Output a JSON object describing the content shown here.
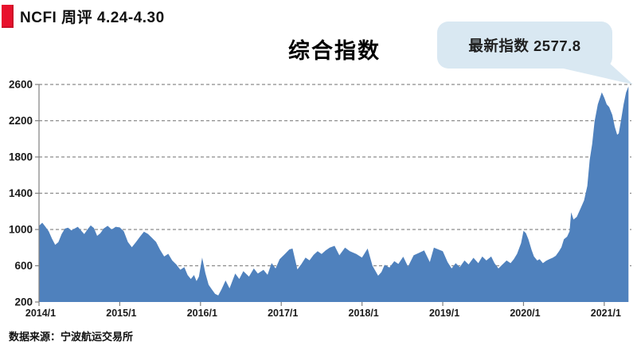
{
  "header": {
    "title": "NCFI 周评 4.24-4.30",
    "badge_color": "#e8112d"
  },
  "chart": {
    "title": "综合指数",
    "callout": {
      "label": "最新指数",
      "value": "2577.8",
      "text": "最新指数 2577.8",
      "bg": "#d9e8f2"
    },
    "source": "数据来源：宁波航运交易所"
  },
  "chart_data": {
    "type": "area",
    "title": "综合指数",
    "series_name": "NCFI 综合指数 (周)",
    "latest_value": 2577.8,
    "xlim": [
      2014.0,
      2021.3
    ],
    "ylim": [
      200,
      2600
    ],
    "grid": "horizontal-dashed",
    "legend": "none",
    "colors": {
      "area": "#4f81bd",
      "grid": "#8c8c8c",
      "axis": "#808080",
      "label": "#1a1a1a"
    },
    "y_ticks": [
      200,
      600,
      1000,
      1400,
      1800,
      2200,
      2600
    ],
    "x_ticks": {
      "positions": [
        2014,
        2015,
        2016,
        2017,
        2018,
        2019,
        2020,
        2021
      ],
      "labels": [
        "2014/1",
        "2015/1",
        "2016/1",
        "2017/1",
        "2018/1",
        "2019/1",
        "2020/1",
        "2021/1"
      ]
    },
    "x": [
      2014.0,
      2014.04,
      2014.08,
      2014.12,
      2014.16,
      2014.2,
      2014.24,
      2014.28,
      2014.32,
      2014.36,
      2014.4,
      2014.44,
      2014.48,
      2014.52,
      2014.56,
      2014.6,
      2014.64,
      2014.68,
      2014.72,
      2014.76,
      2014.8,
      2014.85,
      2014.9,
      2014.95,
      2015.0,
      2015.05,
      2015.1,
      2015.15,
      2015.2,
      2015.25,
      2015.3,
      2015.35,
      2015.4,
      2015.45,
      2015.5,
      2015.55,
      2015.6,
      2015.65,
      2015.7,
      2015.75,
      2015.8,
      2015.84,
      2015.88,
      2015.92,
      2015.95,
      2015.98,
      2016.02,
      2016.06,
      2016.1,
      2016.14,
      2016.18,
      2016.22,
      2016.26,
      2016.31,
      2016.36,
      2016.43,
      2016.48,
      2016.53,
      2016.6,
      2016.66,
      2016.71,
      2016.78,
      2016.83,
      2016.88,
      2016.93,
      2016.98,
      2017.05,
      2017.1,
      2017.14,
      2017.2,
      2017.25,
      2017.3,
      2017.35,
      2017.4,
      2017.45,
      2017.5,
      2017.55,
      2017.6,
      2017.66,
      2017.72,
      2017.79,
      2017.85,
      2017.93,
      2018.0,
      2018.07,
      2018.13,
      2018.2,
      2018.24,
      2018.28,
      2018.34,
      2018.4,
      2018.45,
      2018.51,
      2018.57,
      2018.64,
      2018.7,
      2018.77,
      2018.84,
      2018.89,
      2018.96,
      2019.0,
      2019.06,
      2019.11,
      2019.16,
      2019.21,
      2019.27,
      2019.32,
      2019.38,
      2019.44,
      2019.49,
      2019.54,
      2019.6,
      2019.64,
      2019.69,
      2019.74,
      2019.79,
      2019.84,
      2019.88,
      2019.92,
      2019.97,
      2020.0,
      2020.03,
      2020.06,
      2020.1,
      2020.13,
      2020.17,
      2020.2,
      2020.24,
      2020.28,
      2020.32,
      2020.36,
      2020.4,
      2020.44,
      2020.47,
      2020.5,
      2020.54,
      2020.57,
      2020.59,
      2020.62,
      2020.66,
      2020.71,
      2020.75,
      2020.79,
      2020.82,
      2020.85,
      2020.88,
      2020.92,
      2020.97,
      2021.0,
      2021.03,
      2021.06,
      2021.1,
      2021.13,
      2021.16,
      2021.18,
      2021.21,
      2021.24,
      2021.27,
      2021.3
    ],
    "values": [
      1040,
      1075,
      1030,
      980,
      900,
      830,
      860,
      950,
      1010,
      1020,
      990,
      1010,
      1030,
      990,
      950,
      1000,
      1045,
      1015,
      930,
      960,
      1010,
      1040,
      1000,
      1030,
      1023,
      980,
      863,
      805,
      860,
      921,
      975,
      951,
      907,
      863,
      775,
      702,
      732,
      658,
      614,
      556,
      585,
      498,
      454,
      498,
      430,
      480,
      690,
      520,
      390,
      340,
      290,
      273,
      340,
      437,
      350,
      515,
      454,
      540,
      480,
      570,
      515,
      555,
      500,
      630,
      570,
      673,
      734,
      780,
      790,
      560,
      620,
      690,
      660,
      720,
      760,
      730,
      770,
      800,
      820,
      715,
      800,
      760,
      730,
      690,
      790,
      600,
      490,
      530,
      610,
      580,
      650,
      620,
      700,
      590,
      715,
      740,
      770,
      640,
      800,
      775,
      760,
      640,
      570,
      629,
      585,
      658,
      614,
      688,
      629,
      702,
      658,
      702,
      629,
      570,
      614,
      658,
      629,
      673,
      732,
      850,
      986,
      960,
      892,
      775,
      702,
      658,
      673,
      629,
      655,
      673,
      688,
      710,
      760,
      804,
      892,
      921,
      980,
      1190,
      1110,
      1140,
      1240,
      1320,
      1480,
      1768,
      1943,
      2191,
      2381,
      2513,
      2454,
      2381,
      2352,
      2264,
      2133,
      2045,
      2060,
      2220,
      2381,
      2513,
      2577.8
    ]
  }
}
